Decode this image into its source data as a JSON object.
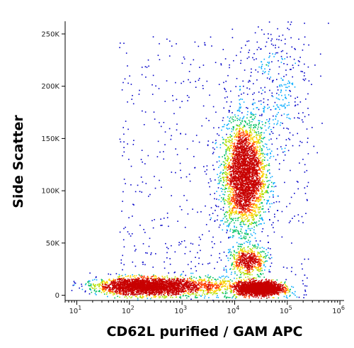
{
  "chart_data": {
    "type": "scatter",
    "subtype": "flow-cytometry density dot plot",
    "title": "",
    "xlabel": "CD62L purified / GAM APC",
    "ylabel": "Side Scatter",
    "x_scale": "log",
    "xlim": [
      6,
      1200000
    ],
    "ylim": [
      -5000,
      262144
    ],
    "x_ticks": [
      10,
      100,
      1000,
      10000,
      100000,
      1000000
    ],
    "x_tick_labels": [
      {
        "base": "10",
        "exp": "1"
      },
      {
        "base": "10",
        "exp": "2"
      },
      {
        "base": "10",
        "exp": "3"
      },
      {
        "base": "10",
        "exp": "4"
      },
      {
        "base": "10",
        "exp": "5"
      },
      {
        "base": "10",
        "exp": "6"
      }
    ],
    "y_ticks": [
      0,
      50000,
      100000,
      150000,
      200000,
      250000
    ],
    "y_tick_labels": [
      "0",
      "50K",
      "100K",
      "150K",
      "200K",
      "250K"
    ],
    "grid": false,
    "legend": "none",
    "color_scale": [
      "#0000c8",
      "#00aaff",
      "#00c060",
      "#b0e000",
      "#ffd000",
      "#ff4000",
      "#c80000"
    ],
    "populations": [
      {
        "x_center": 15000,
        "y_center": 115000,
        "x_spread_log": 0.2,
        "y_spread": 25000,
        "density": "high"
      },
      {
        "x_center": 18000,
        "y_center": 33000,
        "x_spread_log": 0.17,
        "y_spread": 7000,
        "density": "medium"
      },
      {
        "x_center": 200,
        "y_center": 9000,
        "x_spread_log": 0.45,
        "y_spread": 4000,
        "density": "very high"
      },
      {
        "x_center": 30000,
        "y_center": 7000,
        "x_spread_log": 0.2,
        "y_spread": 3000,
        "density": "very high"
      },
      {
        "x_center": 3000,
        "y_center": 9000,
        "x_spread_log": 0.5,
        "y_spread": 4500,
        "density": "medium"
      },
      {
        "x_center": 60000,
        "y_center": 200000,
        "x_spread_log": 0.4,
        "y_spread": 35000,
        "density": "low"
      }
    ]
  }
}
